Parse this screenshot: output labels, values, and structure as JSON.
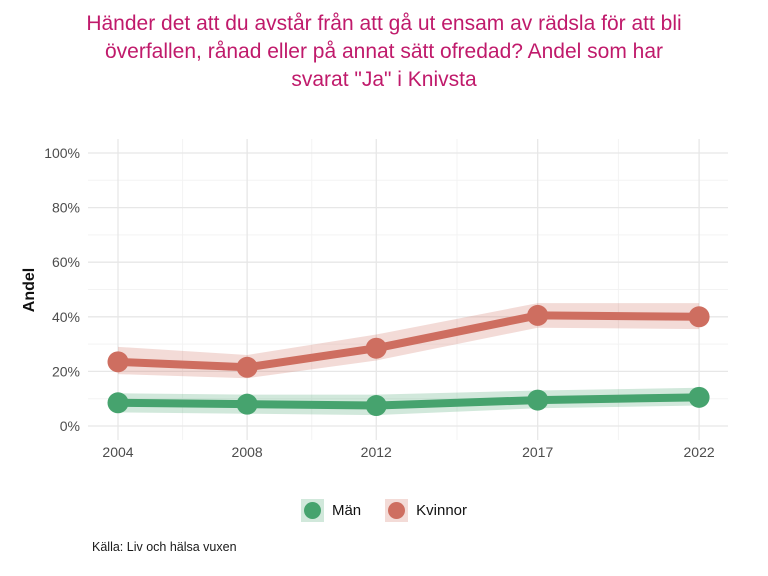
{
  "colors": {
    "background": "#FFFFFF",
    "title": "#C01A6B",
    "men": "#46A36E",
    "women": "#CE6E60",
    "grid_major": "#E7E7E7",
    "grid_minor": "#F3F3F3",
    "tick_text": "#4D4D4D",
    "text": "#1A1A1A"
  },
  "source": "Källa: Liv och hälsa vuxen",
  "legend": [
    {
      "label": "Män",
      "color": "#46A36E"
    },
    {
      "label": "Kvinnor",
      "color": "#CE6E60"
    }
  ],
  "chart_data": {
    "type": "line",
    "title": "Händer det att du avstår från att gå ut ensam av rädsla för att bli överfallen, rånad eller på annat sätt ofredad? Andel som har svarat \"Ja\" i Knivsta",
    "xlabel": "",
    "ylabel": "Andel",
    "x": [
      2004,
      2008,
      2012,
      2017,
      2022
    ],
    "xticks": [
      "2004",
      "2008",
      "2012",
      "2017",
      "2022"
    ],
    "yticks": [
      0,
      20,
      40,
      60,
      80,
      100
    ],
    "ytick_suffix": "%",
    "ylim": [
      0,
      100
    ],
    "grid": true,
    "legend_position": "bottom",
    "bands": "confidence interval ribbons",
    "series": [
      {
        "name": "Män",
        "color": "#46A36E",
        "values": [
          8.5,
          8,
          7.5,
          9.5,
          10.5
        ],
        "ci_low": [
          5,
          4.5,
          4,
          6.5,
          7.5
        ],
        "ci_high": [
          12,
          11.5,
          11.5,
          13,
          14
        ]
      },
      {
        "name": "Kvinnor",
        "color": "#CE6E60",
        "values": [
          23.5,
          21.5,
          28.5,
          40.5,
          40
        ],
        "ci_low": [
          19,
          17.5,
          24,
          36,
          35.5
        ],
        "ci_high": [
          29,
          26,
          33.5,
          45,
          45
        ]
      }
    ]
  }
}
